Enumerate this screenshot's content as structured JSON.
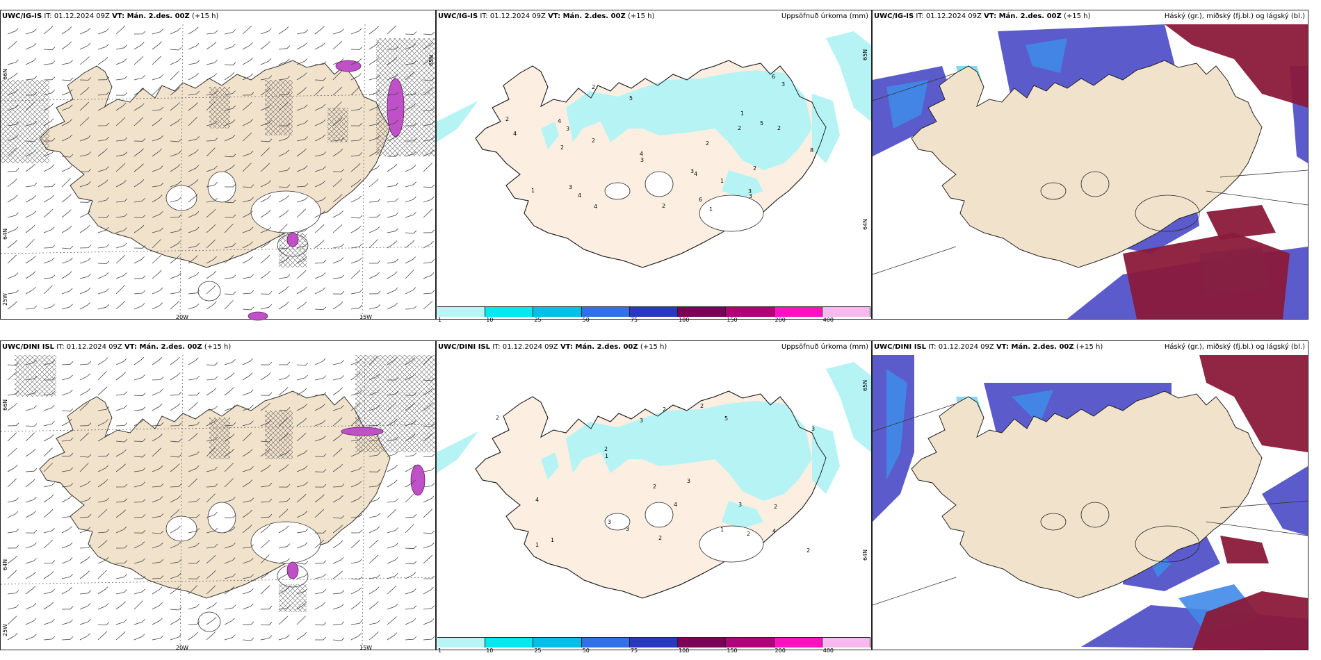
{
  "panels": [
    {
      "id": "p1",
      "model": "UWC/IG-IS",
      "it_label": "IT:",
      "it": "01.12.2024 09Z",
      "vt_label": "VT:",
      "vt": "Mán. 2.des. 00Z",
      "lead": "(+15 h)",
      "right": ""
    },
    {
      "id": "p2",
      "model": "UWC/IG-IS",
      "it_label": "IT:",
      "it": "01.12.2024 09Z",
      "vt_label": "VT:",
      "vt": "Mán. 2.des. 00Z",
      "lead": "(+15 h)",
      "right": "Uppsöfnuð úrkoma (mm)"
    },
    {
      "id": "p3",
      "model": "UWC/IG-IS",
      "it_label": "IT:",
      "it": "01.12.2024 09Z",
      "vt_label": "VT:",
      "vt": "Mán. 2.des. 00Z",
      "lead": "(+15 h)",
      "right": "Háský (gr.), miðský (fj.bl.) og lágský (bl.)"
    },
    {
      "id": "p4",
      "model": "UWC/DINI ISL",
      "it_label": "IT:",
      "it": "01.12.2024 09Z",
      "vt_label": "VT:",
      "vt": "Mán. 2.des. 00Z",
      "lead": "(+15 h)",
      "right": ""
    },
    {
      "id": "p5",
      "model": "UWC/DINI ISL",
      "it_label": "IT:",
      "it": "01.12.2024 09Z",
      "vt_label": "VT:",
      "vt": "Mán. 2.des. 00Z",
      "lead": "(+15 h)",
      "right": "Uppsöfnuð úrkoma (mm)"
    },
    {
      "id": "p6",
      "model": "UWC/DINI ISL",
      "it_label": "IT:",
      "it": "01.12.2024 09Z",
      "vt_label": "VT:",
      "vt": "Mán. 2.des. 00Z",
      "lead": "(+15 h)",
      "right": "Háský (gr.), miðský (fj.bl.) og lágský (bl.)"
    }
  ],
  "grid_labels": {
    "lon": [
      "20W",
      "15W"
    ],
    "lat": [
      "66N",
      "64N",
      "25W"
    ],
    "lat_right": [
      "65N",
      "64N"
    ]
  },
  "colorbar": {
    "ticks": [
      "1",
      "10",
      "25",
      "50",
      "75",
      "100",
      "150",
      "200",
      "400"
    ],
    "colors": [
      "#b8f5f5",
      "#00e8f0",
      "#00c0e8",
      "#3070e8",
      "#2838c0",
      "#7a0058",
      "#b0007a",
      "#ff10c0",
      "#f8b8f0"
    ]
  },
  "precip_labels_top": [
    "1",
    "2",
    "3",
    "4",
    "5",
    "6",
    "8",
    "2",
    "3",
    "4",
    "1",
    "2",
    "4",
    "3",
    "2",
    "6",
    "4",
    "3",
    "2",
    "2",
    "3",
    "4",
    "4",
    "3",
    "2",
    "1",
    "2",
    "3",
    "2",
    "5",
    "1"
  ],
  "precip_labels_bottom": [
    "1",
    "2",
    "3",
    "4",
    "3",
    "2",
    "4",
    "5",
    "2",
    "3",
    "2",
    "1",
    "3",
    "2",
    "1",
    "2",
    "3",
    "4",
    "2",
    "3",
    "2",
    "1",
    "2"
  ],
  "colors": {
    "land": "#f1e2cc",
    "land_plain": "#fcefe2",
    "precip_light": "#b6f3f4",
    "low_cloud": "#5252c8",
    "mid_cloud": "#3f8ae8",
    "high_cloud": "#8a1a3a",
    "cloud_light": "#6ad0f0",
    "hatch": "#555555",
    "pink": "#c050c8"
  }
}
